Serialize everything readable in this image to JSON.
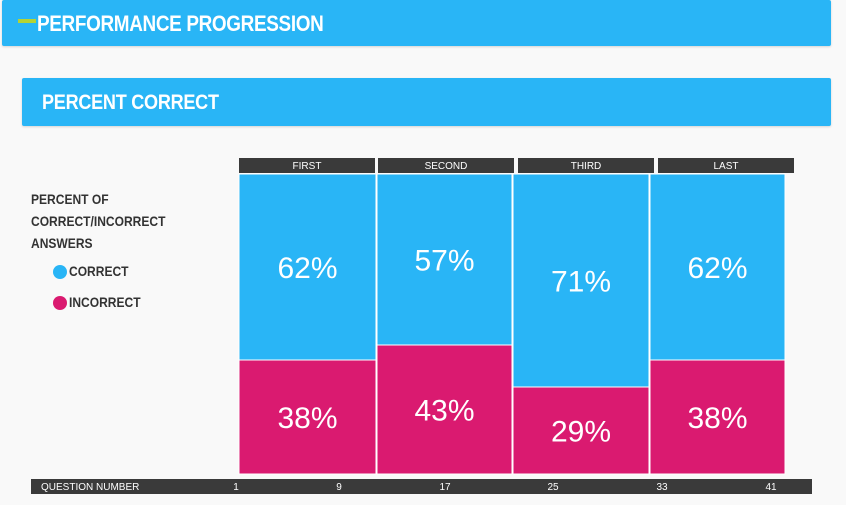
{
  "header": {
    "title": "PERFORMANCE PROGRESSION"
  },
  "section": {
    "title": "PERCENT CORRECT"
  },
  "legend": {
    "heading_lines": [
      "PERCENT OF",
      "CORRECT/INCORRECT",
      "ANSWERS"
    ],
    "items": [
      {
        "label": "CORRECT",
        "color": "#29b5f6"
      },
      {
        "label": "INCORRECT",
        "color": "#da1a70"
      }
    ]
  },
  "colors": {
    "accent": "#b5d334",
    "correct": "#29b5f6",
    "incorrect": "#da1a70",
    "dark_bar": "#3a3a3a"
  },
  "chart_data": {
    "type": "bar",
    "stacked": true,
    "categories": [
      "FIRST",
      "SECOND",
      "THIRD",
      "LAST"
    ],
    "series": [
      {
        "name": "CORRECT",
        "values": [
          62,
          57,
          71,
          62
        ],
        "labels": [
          "62%",
          "57%",
          "71%",
          "62%"
        ]
      },
      {
        "name": "INCORRECT",
        "values": [
          38,
          43,
          29,
          38
        ],
        "labels": [
          "38%",
          "43%",
          "29%",
          "38%"
        ]
      }
    ],
    "ylim": [
      0,
      100
    ],
    "x_axis": {
      "label": "QUESTION NUMBER",
      "ticks": [
        "1",
        "9",
        "17",
        "25",
        "33",
        "41"
      ]
    }
  }
}
